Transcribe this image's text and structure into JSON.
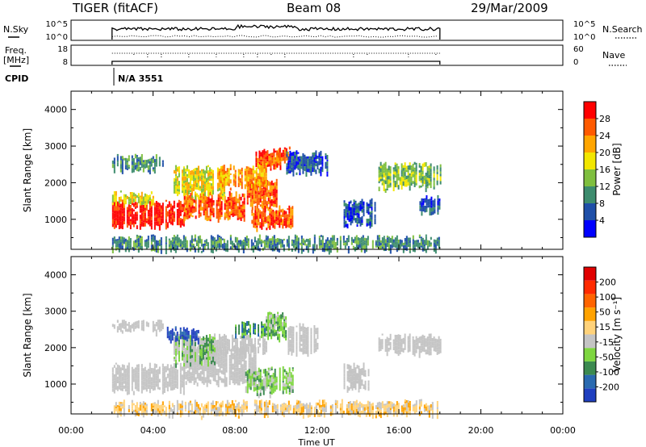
{
  "header": {
    "radar": "TIGER (fitACF)",
    "beam": "Beam 08",
    "date": "29/Mar/2009"
  },
  "strips": {
    "nsky_label": "N.Sky",
    "nsearch_label": "N.Search",
    "noise_ticks_left": [
      "10^5",
      "10^0"
    ],
    "noise_ticks_right": [
      "10^5",
      "10^0"
    ],
    "freq_label": "Freq.",
    "freq_unit": "[MHz]",
    "freq_ticks": [
      "18",
      "8"
    ],
    "nave_label": "Nave",
    "nave_ticks": [
      "60",
      "0"
    ],
    "cpid_label": "CPID",
    "cpid_value": "N/A 3551"
  },
  "colors": {
    "power": [
      "#0000ff",
      "#1f4fa8",
      "#3d8c6e",
      "#7fbf3f",
      "#f2e600",
      "#ffa500",
      "#ff5a00",
      "#ff0000"
    ],
    "velocity": [
      "#1f3fbf",
      "#2a6ab0",
      "#3c8a50",
      "#7ed640",
      "#c4c4c4",
      "#ffd27a",
      "#ffa200",
      "#ff6400",
      "#ff2a00",
      "#e00000"
    ],
    "gray": "#c4c4c4"
  },
  "chart_data": [
    {
      "type": "heatmap",
      "name": "power",
      "xlabel": "Time UT",
      "ylabel": "Slant Range [km]",
      "x_ticks": [
        "00:00",
        "04:00",
        "08:00",
        "12:00",
        "16:00",
        "20:00",
        "00:00"
      ],
      "y_ticks": [
        "1000",
        "2000",
        "3000",
        "4000"
      ],
      "xlim_hours": [
        0,
        24
      ],
      "ylim_km": [
        180,
        4500
      ],
      "colorbar_label": "Power [dB]",
      "colorbar_ticks": [
        "4",
        "8",
        "12",
        "16",
        "20",
        "24",
        "28"
      ],
      "colorbar_range": [
        0,
        32
      ],
      "regions": [
        {
          "t": [
            2.0,
            5.5
          ],
          "r": [
            850,
            1450
          ],
          "level": 7
        },
        {
          "t": [
            5.5,
            8.5
          ],
          "r": [
            1050,
            1700
          ],
          "level": 6
        },
        {
          "t": [
            8.5,
            10.0
          ],
          "r": [
            1400,
            2100
          ],
          "level": 6
        },
        {
          "t": [
            9.0,
            10.2
          ],
          "r": [
            2450,
            2850
          ],
          "level": 6
        },
        {
          "t": [
            10.0,
            10.7
          ],
          "r": [
            2600,
            2900
          ],
          "level": 6
        },
        {
          "t": [
            8.8,
            10.8
          ],
          "r": [
            800,
            1300
          ],
          "level": 6
        },
        {
          "t": [
            2.0,
            4.0
          ],
          "r": [
            1500,
            1700
          ],
          "level": 4
        },
        {
          "t": [
            5.0,
            7.5
          ],
          "r": [
            1700,
            2400
          ],
          "level": 4
        },
        {
          "t": [
            7.2,
            9.5
          ],
          "r": [
            1900,
            2450
          ],
          "level": 5
        },
        {
          "t": [
            2.0,
            4.5
          ],
          "r": [
            2400,
            2700
          ],
          "level": 2
        },
        {
          "t": [
            10.5,
            12.5
          ],
          "r": [
            2300,
            2800
          ],
          "level": 1
        },
        {
          "t": [
            15.0,
            18.0
          ],
          "r": [
            1900,
            2500
          ],
          "level": 3
        },
        {
          "t": [
            13.3,
            14.8
          ],
          "r": [
            900,
            1500
          ],
          "level": 1
        },
        {
          "t": [
            17.0,
            18.0
          ],
          "r": [
            1200,
            1600
          ],
          "level": 1
        },
        {
          "t": [
            2.0,
            18.0
          ],
          "r": [
            200,
            500
          ],
          "level": 2
        }
      ]
    },
    {
      "type": "heatmap",
      "name": "velocity",
      "xlabel": "Time UT",
      "ylabel": "Slant Range [km]",
      "x_ticks": [
        "00:00",
        "04:00",
        "08:00",
        "12:00",
        "16:00",
        "20:00",
        "00:00"
      ],
      "y_ticks": [
        "1000",
        "2000",
        "3000",
        "4000"
      ],
      "xlim_hours": [
        0,
        24
      ],
      "ylim_km": [
        180,
        4500
      ],
      "colorbar_label": "Velocity [m s⁻¹]",
      "colorbar_ticks": [
        "200",
        "100",
        "50",
        "15",
        "-15",
        "-50",
        "-100",
        "-200"
      ],
      "colorbar_range": [
        -250,
        250
      ],
      "regions": [
        {
          "t": [
            2.0,
            5.5
          ],
          "r": [
            850,
            1500
          ],
          "level": "gray"
        },
        {
          "t": [
            5.5,
            9.0
          ],
          "r": [
            1050,
            2000
          ],
          "level": "gray"
        },
        {
          "t": [
            5.0,
            9.5
          ],
          "r": [
            1900,
            2300
          ],
          "level": "gray"
        },
        {
          "t": [
            8.5,
            10.8
          ],
          "r": [
            800,
            1400
          ],
          "level": 3
        },
        {
          "t": [
            5.0,
            7.0
          ],
          "r": [
            1600,
            2300
          ],
          "level": 3
        },
        {
          "t": [
            4.6,
            6.2
          ],
          "r": [
            2250,
            2500
          ],
          "level": 0
        },
        {
          "t": [
            8.0,
            9.5
          ],
          "r": [
            2350,
            2700
          ],
          "level": 2
        },
        {
          "t": [
            9.5,
            10.5
          ],
          "r": [
            2300,
            2900
          ],
          "level": 3
        },
        {
          "t": [
            10.5,
            12.0
          ],
          "r": [
            1900,
            2600
          ],
          "level": "gray"
        },
        {
          "t": [
            15.0,
            18.0
          ],
          "r": [
            1900,
            2300
          ],
          "level": "gray"
        },
        {
          "t": [
            2.0,
            4.5
          ],
          "r": [
            2500,
            2700
          ],
          "level": "gray"
        },
        {
          "t": [
            13.3,
            14.5
          ],
          "r": [
            900,
            1500
          ],
          "level": "gray"
        },
        {
          "t": [
            2.0,
            18.0
          ],
          "r": [
            200,
            500
          ],
          "level": 5
        }
      ]
    }
  ]
}
